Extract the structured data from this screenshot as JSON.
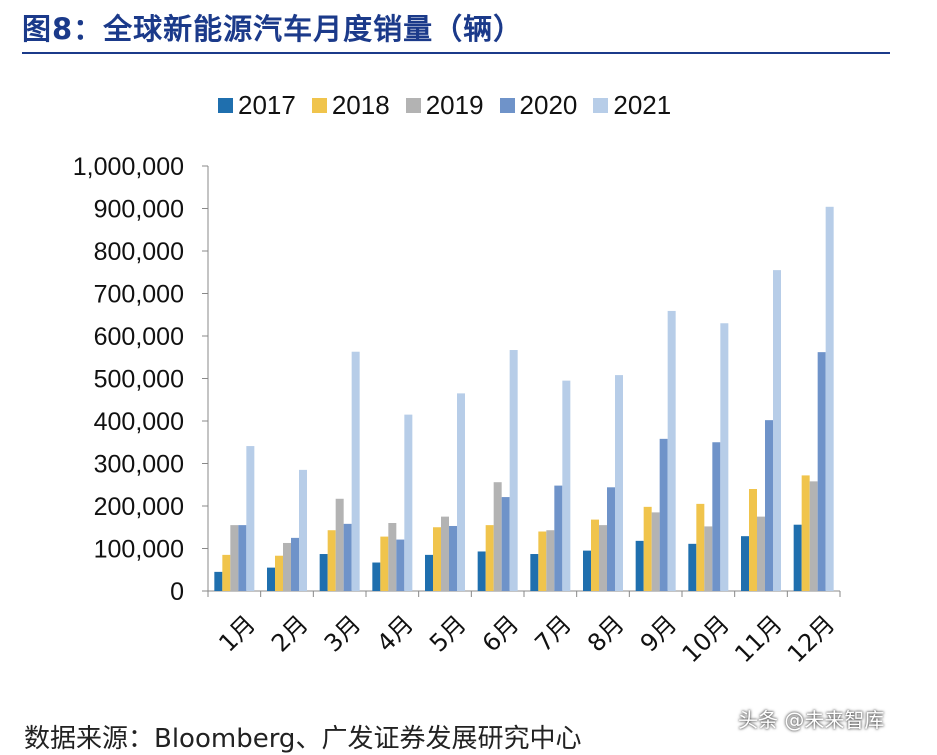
{
  "header": {
    "title": "图8：全球新能源汽车月度销量（辆）"
  },
  "footer": {
    "source": "数据来源：Bloomberg、广发证券发展研究中心",
    "watermark": "头条 @未来智库"
  },
  "colors": {
    "2017": "#1f6fae",
    "2018": "#f0c44c",
    "2019": "#b3b3b3",
    "2020": "#6f93c9",
    "2021": "#b7cde8"
  },
  "chart_data": {
    "type": "bar",
    "title": "",
    "xlabel": "",
    "ylabel": "",
    "ylim": [
      0,
      1000000
    ],
    "yticks": [
      "0",
      "100,000",
      "200,000",
      "300,000",
      "400,000",
      "500,000",
      "600,000",
      "700,000",
      "800,000",
      "900,000",
      "1,000,000"
    ],
    "categories": [
      "1月",
      "2月",
      "3月",
      "4月",
      "5月",
      "6月",
      "7月",
      "8月",
      "9月",
      "10月",
      "11月",
      "12月"
    ],
    "legend_position": "top",
    "grid": false,
    "series": [
      {
        "name": "2017",
        "values": [
          45000,
          55000,
          87000,
          67000,
          85000,
          93000,
          87000,
          95000,
          118000,
          111000,
          129000,
          156000
        ]
      },
      {
        "name": "2018",
        "values": [
          85000,
          83000,
          143000,
          128000,
          150000,
          155000,
          140000,
          168000,
          198000,
          205000,
          240000,
          272000
        ]
      },
      {
        "name": "2019",
        "values": [
          155000,
          113000,
          217000,
          160000,
          175000,
          256000,
          143000,
          155000,
          185000,
          152000,
          175000,
          258000
        ]
      },
      {
        "name": "2020",
        "values": [
          155000,
          125000,
          158000,
          121000,
          153000,
          221000,
          248000,
          244000,
          358000,
          350000,
          402000,
          562000
        ]
      },
      {
        "name": "2021",
        "values": [
          341000,
          285000,
          563000,
          415000,
          465000,
          567000,
          495000,
          508000,
          659000,
          630000,
          755000,
          904000
        ]
      }
    ]
  }
}
